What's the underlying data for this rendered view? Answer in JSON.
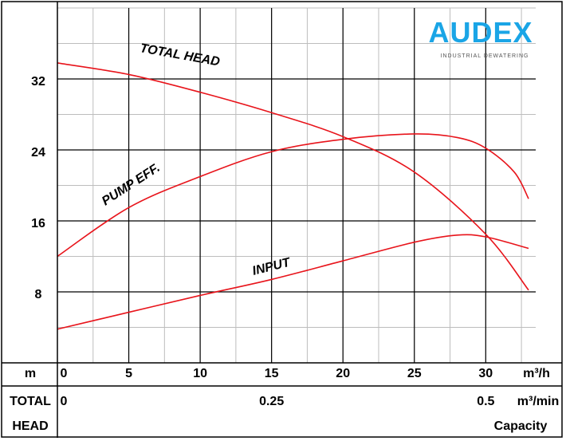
{
  "brand": {
    "name": "AUDEX",
    "tagline": "INDUSTRIAL DEWATERING",
    "color": "#1aa5e6"
  },
  "chart_data": {
    "type": "line",
    "y_axis": {
      "label": "m",
      "ticks": [
        "8",
        "16",
        "24",
        "32"
      ],
      "tick_values": [
        8,
        16,
        24,
        32
      ],
      "range": [
        0,
        40
      ]
    },
    "x_axis": {
      "unit": "m³/h",
      "ticks": [
        "0",
        "5",
        "10",
        "15",
        "20",
        "25",
        "30"
      ],
      "tick_values": [
        0,
        5,
        10,
        15,
        20,
        25,
        30
      ],
      "range": [
        0,
        33.5
      ]
    },
    "secondary_x_axis": {
      "label_line1": "TOTAL",
      "label_line2": "HEAD",
      "unit": "m³/min",
      "ticks": [
        "0",
        "0.25",
        "0.5"
      ],
      "tick_positions_m3h": [
        0,
        15,
        30
      ],
      "caption": "Capacity"
    },
    "grid": true,
    "series": [
      {
        "name": "TOTAL HEAD",
        "color": "#e8141b",
        "points": [
          [
            0,
            33.8
          ],
          [
            5,
            32.5
          ],
          [
            10,
            30.5
          ],
          [
            15,
            28.2
          ],
          [
            20,
            25.5
          ],
          [
            25,
            21.5
          ],
          [
            30,
            14.5
          ],
          [
            33,
            8.2
          ]
        ]
      },
      {
        "name": "PUMP EFF.",
        "color": "#e8141b",
        "points": [
          [
            0,
            12.0
          ],
          [
            5,
            17.5
          ],
          [
            10,
            21.0
          ],
          [
            15,
            23.8
          ],
          [
            20,
            25.2
          ],
          [
            25,
            25.8
          ],
          [
            28,
            25.4
          ],
          [
            30,
            24.2
          ],
          [
            32,
            21.5
          ],
          [
            33,
            18.5
          ]
        ]
      },
      {
        "name": "INPUT",
        "color": "#e8141b",
        "points": [
          [
            0,
            3.8
          ],
          [
            5,
            5.7
          ],
          [
            10,
            7.6
          ],
          [
            15,
            9.4
          ],
          [
            20,
            11.5
          ],
          [
            25,
            13.6
          ],
          [
            28,
            14.4
          ],
          [
            30,
            14.2
          ],
          [
            33,
            12.9
          ]
        ]
      }
    ]
  }
}
